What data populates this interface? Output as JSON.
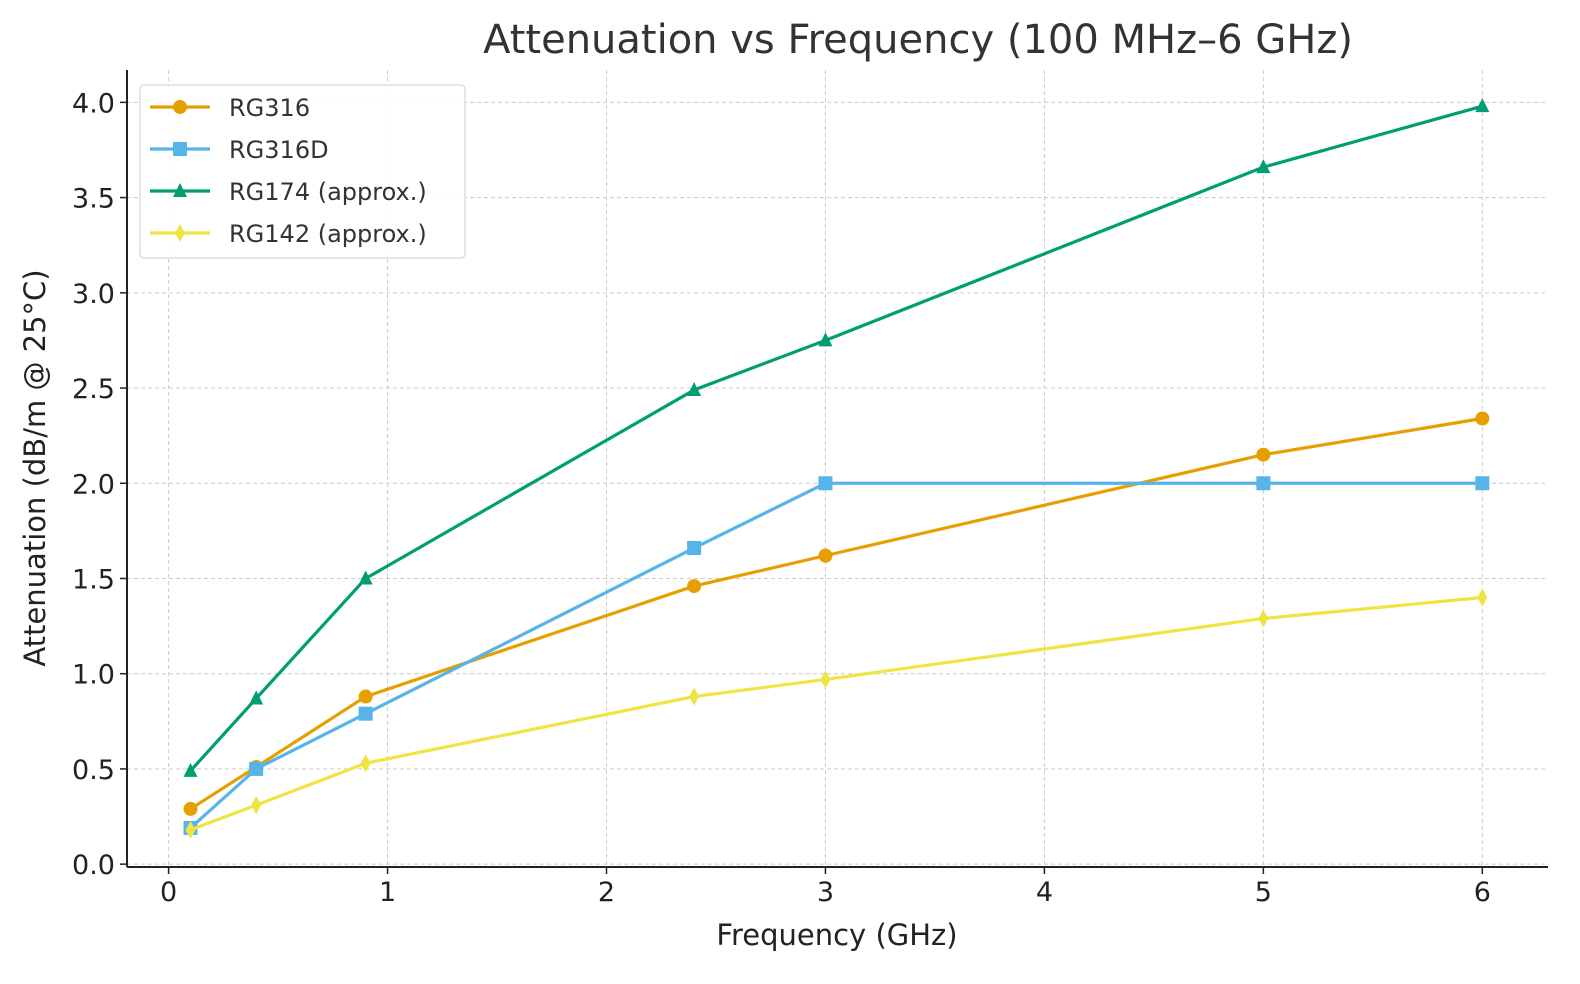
{
  "chart_data": {
    "type": "line",
    "title": "Attenuation vs Frequency (100 MHz–6 GHz)",
    "xlabel": "Frequency (GHz)",
    "ylabel": "Attenuation (dB/m @ 25°C)",
    "xlim": [
      -0.19,
      6.3
    ],
    "ylim": [
      -0.015,
      4.17
    ],
    "xticks": [
      "0",
      "1",
      "2",
      "3",
      "4",
      "5",
      "6"
    ],
    "yticks": [
      "0.0",
      "0.5",
      "1.0",
      "1.5",
      "2.0",
      "2.5",
      "3.0",
      "3.5",
      "4.0"
    ],
    "grid": true,
    "legend_position": "top-left",
    "x": [
      0.1,
      0.4,
      0.9,
      2.4,
      3.0,
      5.0,
      6.0
    ],
    "series": [
      {
        "name": "RG316",
        "color": "#E69F00",
        "marker": "circle",
        "values": [
          0.29,
          0.51,
          0.88,
          1.46,
          1.62,
          2.15,
          2.34
        ]
      },
      {
        "name": "RG316D",
        "color": "#56B4E9",
        "marker": "square",
        "values": [
          0.19,
          0.5,
          0.79,
          1.66,
          2.0,
          2.0,
          2.0
        ]
      },
      {
        "name": "RG174 (approx.)",
        "color": "#009E73",
        "marker": "triangle",
        "values": [
          0.49,
          0.87,
          1.5,
          2.49,
          2.75,
          3.66,
          3.98
        ]
      },
      {
        "name": "RG142 (approx.)",
        "color": "#F0E442",
        "marker": "diamond",
        "values": [
          0.18,
          0.31,
          0.53,
          0.88,
          0.97,
          1.29,
          1.4
        ]
      }
    ]
  }
}
